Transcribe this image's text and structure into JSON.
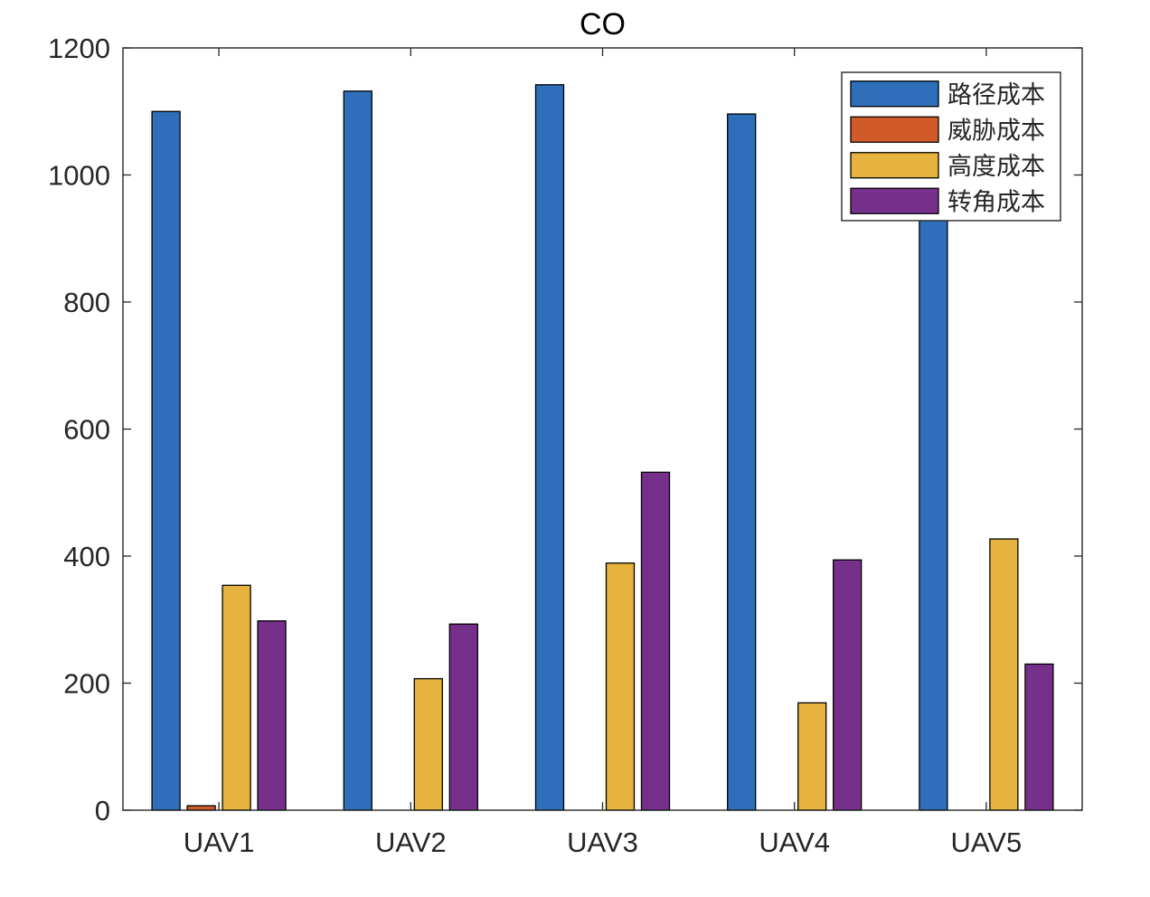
{
  "chart_data": {
    "type": "bar",
    "title": "CO",
    "xlabel": "",
    "ylabel": "",
    "categories": [
      "UAV1",
      "UAV2",
      "UAV3",
      "UAV4",
      "UAV5"
    ],
    "ylim": [
      0,
      1200
    ],
    "yticks": [
      0,
      200,
      400,
      600,
      800,
      1000,
      1200
    ],
    "grid": false,
    "legend_position": "top-right",
    "series": [
      {
        "name": "路径成本",
        "color": "#2f6fba",
        "values": [
          1100,
          1132,
          1142,
          1096,
          1005
        ]
      },
      {
        "name": "威胁成本",
        "color": "#d15a29",
        "values": [
          7,
          0,
          0,
          0,
          0
        ]
      },
      {
        "name": "高度成本",
        "color": "#e5b33e",
        "values": [
          354,
          207,
          389,
          169,
          427
        ]
      },
      {
        "name": "转角成本",
        "color": "#76308c",
        "values": [
          298,
          293,
          532,
          394,
          230
        ]
      }
    ]
  }
}
